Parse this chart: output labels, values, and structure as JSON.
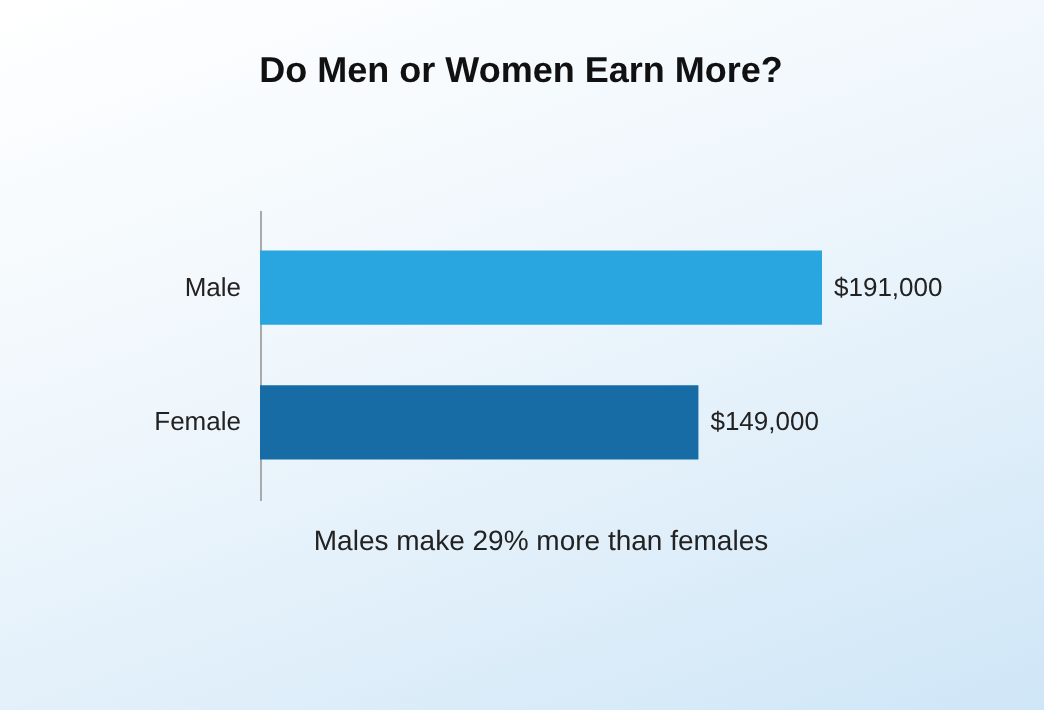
{
  "chart_data": {
    "type": "bar",
    "orientation": "horizontal",
    "title": "Do Men or Women Earn More?",
    "categories": [
      "Male",
      "Female"
    ],
    "values": [
      191000,
      149000
    ],
    "colors": [
      "#29a6df",
      "#176ca6"
    ],
    "value_labels": [
      "$191,000",
      "$149,000"
    ],
    "annotations": [
      "Males make 29% more than females"
    ]
  }
}
